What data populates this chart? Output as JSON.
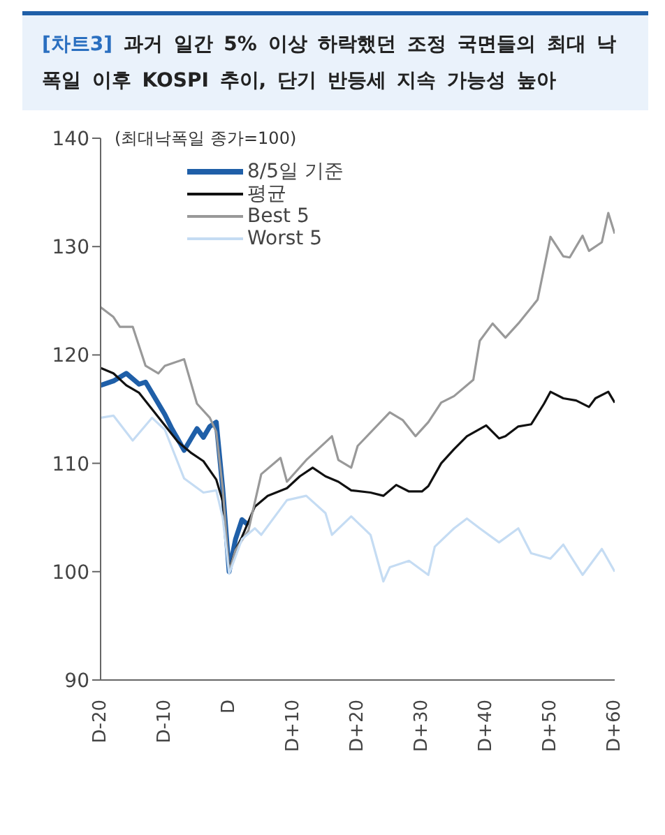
{
  "chart_data": {
    "type": "line",
    "title": "[차트3] 과거 일간 5% 이상 하락했던 조정 국면들의 최대 낙폭일 이후 KOSPI 추이, 단기 반등세 지속 가능성 높아",
    "annotations": [
      "(최대낙폭일 종가=100)"
    ],
    "categories": [
      "D-20",
      null,
      null,
      null,
      null,
      null,
      null,
      null,
      null,
      null,
      "D-10",
      null,
      null,
      null,
      null,
      null,
      null,
      null,
      null,
      null,
      "D",
      null,
      null,
      null,
      null,
      null,
      null,
      null,
      null,
      null,
      "D+10",
      null,
      null,
      null,
      null,
      null,
      null,
      null,
      null,
      null,
      "D+20",
      null,
      null,
      null,
      null,
      null,
      null,
      null,
      null,
      null,
      "D+30",
      null,
      null,
      null,
      null,
      null,
      null,
      null,
      null,
      null,
      "D+40",
      null,
      null,
      null,
      null,
      null,
      null,
      null,
      null,
      null,
      "D+50",
      null,
      null,
      null,
      null,
      null,
      null,
      null,
      null,
      null,
      "D+60"
    ],
    "ylim": [
      90,
      140
    ],
    "yticks": [
      90,
      100,
      110,
      120,
      130,
      140
    ],
    "grid": false,
    "legend": "top left",
    "marker": "none",
    "line_style": "solid",
    "series": [
      {
        "name": "8/5일 기준",
        "color": "#1f5fa8",
        "values": [
          117.2,
          null,
          117.6,
          null,
          118.3,
          null,
          117.3,
          117.5,
          116.5,
          null,
          114.5,
          113.3,
          null,
          111.2,
          112.2,
          113.2,
          112.4,
          113.4,
          113.8,
          107.7,
          100,
          103,
          104.8,
          104.3,
          null,
          null,
          null,
          null,
          null,
          null,
          null,
          null,
          null,
          null,
          null,
          null,
          null,
          null,
          null,
          null,
          null,
          null,
          null,
          null,
          null,
          null,
          null,
          null,
          null,
          null,
          null,
          null,
          null,
          null,
          null,
          null,
          null,
          null,
          null,
          null,
          null,
          null,
          null,
          null,
          null,
          null,
          null,
          null,
          null,
          null,
          null,
          null,
          null,
          null,
          null,
          null,
          null,
          null,
          null,
          null,
          null
        ]
      },
      {
        "name": "평균",
        "color": "#111111",
        "values": [
          118.8,
          null,
          118.3,
          null,
          117.2,
          null,
          116.5,
          null,
          115,
          null,
          113.5,
          null,
          112,
          null,
          111,
          null,
          110.2,
          null,
          108.5,
          106.5,
          100.2,
          102,
          103.2,
          null,
          106,
          null,
          107,
          null,
          null,
          107.7,
          null,
          108.8,
          null,
          109.6,
          null,
          108.8,
          null,
          108.3,
          null,
          107.5,
          null,
          null,
          107.3,
          null,
          107,
          null,
          108,
          null,
          107.4,
          null,
          107.4,
          107.9,
          null,
          110,
          null,
          111.3,
          null,
          112.5,
          null,
          null,
          113.5,
          null,
          112.3,
          112.5,
          null,
          113.4,
          null,
          113.6,
          null,
          115.5,
          116.6,
          null,
          116,
          null,
          115.8,
          null,
          115.2,
          116,
          null,
          116.6,
          115.6
        ]
      },
      {
        "name": "Best 5",
        "color": "#999999",
        "values": [
          124.4,
          null,
          123.5,
          122.6,
          null,
          122.6,
          null,
          119,
          null,
          118.3,
          119,
          null,
          null,
          119.6,
          null,
          115.5,
          null,
          114.2,
          112.9,
          107.7,
          100,
          102,
          null,
          103.8,
          null,
          109,
          null,
          null,
          110.5,
          108.3,
          null,
          null,
          110.3,
          null,
          111.4,
          null,
          112.5,
          110.3,
          null,
          109.6,
          111.6,
          null,
          null,
          null,
          null,
          114.7,
          null,
          114,
          null,
          112.5,
          null,
          113.8,
          null,
          115.6,
          null,
          116.2,
          null,
          null,
          117.7,
          121.3,
          null,
          122.9,
          null,
          121.6,
          null,
          122.9,
          null,
          null,
          125.1,
          null,
          130.9,
          null,
          129.1,
          129,
          null,
          131,
          129.6,
          null,
          130.4,
          133.1,
          131.2
        ]
      },
      {
        "name": "Worst 5",
        "color": "#c5dcf3",
        "values": [
          114.2,
          null,
          114.4,
          null,
          null,
          112.1,
          null,
          null,
          114.2,
          null,
          113.1,
          null,
          null,
          108.6,
          null,
          null,
          107.3,
          null,
          107.5,
          105,
          99.8,
          null,
          103,
          null,
          104,
          103.4,
          null,
          null,
          null,
          106.6,
          null,
          null,
          107,
          null,
          null,
          105.4,
          103.4,
          null,
          null,
          105.1,
          null,
          null,
          103.4,
          null,
          99.1,
          100.4,
          null,
          null,
          101,
          null,
          null,
          99.7,
          102.3,
          null,
          null,
          104,
          null,
          104.9,
          null,
          104,
          null,
          null,
          102.7,
          null,
          null,
          104,
          null,
          101.7,
          null,
          null,
          101.2,
          null,
          102.5,
          null,
          null,
          99.7,
          null,
          null,
          102.1,
          null,
          100
        ]
      }
    ]
  }
}
